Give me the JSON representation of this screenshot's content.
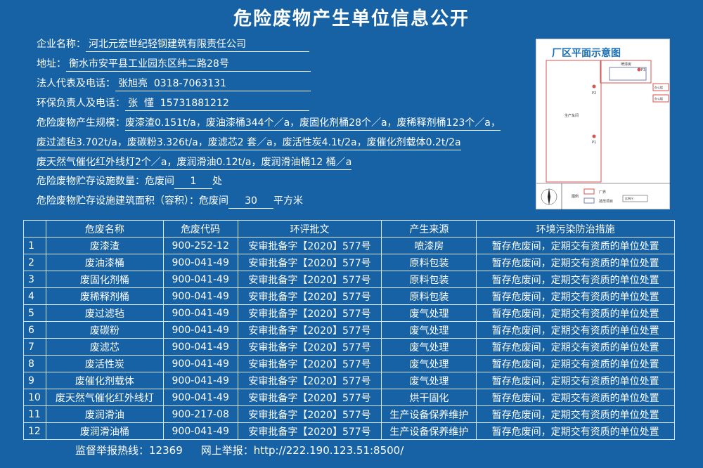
{
  "title": "危险废物产生单位信息公开",
  "info": {
    "company_label": "企业名称：",
    "company": "河北元宏世纪轻钢建筑有限责任公司",
    "address_label": "地址：",
    "address": "衡水市安平县工业园东区纬二路28号",
    "legal_label": "法人代表及电话：",
    "legal": "张旭亮  0318-7063131",
    "env_label": "环保负责人及电话：",
    "env": "张  懂  15731881212",
    "scale_label": "危险废物产生规模：",
    "scale_1": "废漆渣0.151t/a，废油漆桶344个／a，废固化剂桶28个／a，废稀释剂桶123个／a，",
    "scale_2": "废过滤毡3.702t/a，废碳粉3.326t/a，废滤芯2 套／a，废活性炭4.1t/2a，废催化剂载体0.2t/2a",
    "scale_3": "废天然气催化红外线灯2个／a，废润滑油0.12t/a，废润滑油桶12 桶／a",
    "count_label": "危险废物贮存设施数量：危废间",
    "count": "1",
    "count_unit": "处",
    "area_label": "危险废物贮存设施建筑面积（容积）：危废间",
    "area": "30",
    "area_unit": "平方米"
  },
  "plan": {
    "title": "厂区平面示意图",
    "workshop": "生产车间",
    "spray": "喷漆房",
    "office": "办公楼",
    "p1": "P1",
    "p2": "P2",
    "p3": "P3",
    "legend_label": "图例",
    "legend_boundary": "厂界",
    "legend_project": "技改项目",
    "scale": "比例尺"
  },
  "table": {
    "headers": [
      "",
      "危废名称",
      "危废代码",
      "环评批文",
      "产生来源",
      "环境污染防治措施"
    ],
    "rows": [
      [
        "1",
        "废漆渣",
        "900-252-12",
        "安审批备字【2020】577号",
        "喷漆房",
        "暂存危废间，定期交有资质的单位处置"
      ],
      [
        "2",
        "废油漆桶",
        "900-041-49",
        "安审批备字【2020】577号",
        "原料包装",
        "暂存危废间，定期交有资质的单位处置"
      ],
      [
        "3",
        "废固化剂桶",
        "900-041-49",
        "安审批备字【2020】577号",
        "原料包装",
        "暂存危废间，定期交有资质的单位处置"
      ],
      [
        "4",
        "废稀释剂桶",
        "900-041-49",
        "安审批备字【2020】577号",
        "原料包装",
        "暂存危废间，定期交有资质的单位处置"
      ],
      [
        "5",
        "废过滤毡",
        "900-041-49",
        "安审批备字【2020】577号",
        "废气处理",
        "暂存危废间，定期交有资质的单位处置"
      ],
      [
        "6",
        "废碳粉",
        "900-041-49",
        "安审批备字【2020】577号",
        "废气处理",
        "暂存危废间，定期交有资质的单位处置"
      ],
      [
        "7",
        "废滤芯",
        "900-041-49",
        "安审批备字【2020】577号",
        "废气处理",
        "暂存危废间，定期交有资质的单位处置"
      ],
      [
        "8",
        "废活性炭",
        "900-041-49",
        "安审批备字【2020】577号",
        "废气处理",
        "暂存危废间，定期交有资质的单位处置"
      ],
      [
        "9",
        "废催化剂载体",
        "900-041-49",
        "安审批备字【2020】577号",
        "废气处理",
        "暂存危废间，定期交有资质的单位处置"
      ],
      [
        "10",
        "废天然气催化红外线灯",
        "900-041-49",
        "安审批备字【2020】577号",
        "烘干固化",
        "暂存危废间，定期交有资质的单位处置"
      ],
      [
        "11",
        "废润滑油",
        "900-217-08",
        "安审批备字【2020】577号",
        "生产设备保养维护",
        "暂存危废间，定期交有资质的单位处置"
      ],
      [
        "12",
        "废润滑油桶",
        "900-041-49",
        "安审批备字【2020】577号",
        "生产设备保养维护",
        "暂存危废间，定期交有资质的单位处置"
      ]
    ]
  },
  "footer": {
    "hotline_label": "监督举报热线：",
    "hotline": "12369",
    "web_label": "网上举报：",
    "web": "http://222.190.123.51:8500/"
  },
  "colors": {
    "background": "#1762a4",
    "plan_red": "#d9534f",
    "plan_title": "#1a6fb5"
  }
}
